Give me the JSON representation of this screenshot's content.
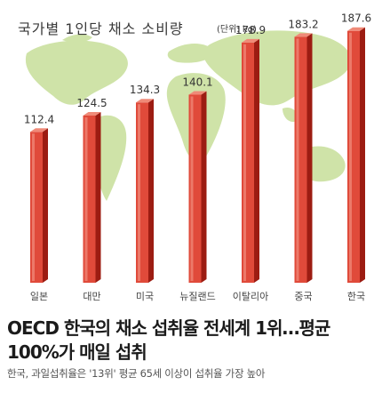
{
  "chart_data": {
    "type": "bar",
    "title": "국가별 1인당 채소 소비량",
    "unit": "(단위: kg)",
    "categories": [
      "일본",
      "대만",
      "미국",
      "뉴질랜드",
      "이탈리아",
      "중국",
      "한국"
    ],
    "values": [
      112.4,
      124.5,
      134.3,
      140.1,
      178.9,
      183.2,
      187.6
    ],
    "value_labels": [
      "112.4",
      "124.5",
      "134.3",
      "140.1",
      "178.9",
      "183.2",
      "187.6"
    ],
    "ylim": [
      0,
      200
    ],
    "grid": false,
    "legend": "none"
  },
  "colors": {
    "bar_front": "#e04a3a",
    "bar_side": "#9c1c12",
    "bar_top": "#ef8a78",
    "map": "#cfe3a8",
    "title_text": "#3a3a3a",
    "headline": "#1b1b1b",
    "subline": "#555555"
  },
  "article": {
    "headline": "OECD 한국의 채소 섭취율 전세계 1위…평균 100%가 매일 섭취",
    "subheadline": "한국, 과일섭취율은 '13위' 평균 65세 이상이 섭취율 가장 높아"
  }
}
